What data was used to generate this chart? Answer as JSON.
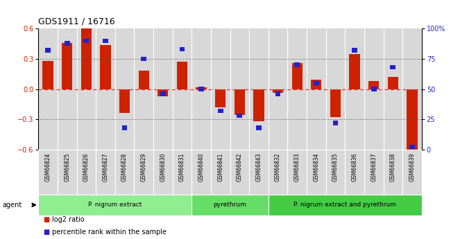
{
  "title": "GDS1911 / 16716",
  "samples": [
    "GSM66824",
    "GSM66825",
    "GSM66826",
    "GSM66827",
    "GSM66828",
    "GSM66829",
    "GSM66830",
    "GSM66831",
    "GSM66840",
    "GSM66841",
    "GSM66842",
    "GSM66843",
    "GSM66832",
    "GSM66833",
    "GSM66834",
    "GSM66835",
    "GSM66836",
    "GSM66837",
    "GSM66838",
    "GSM66839"
  ],
  "log2_ratio": [
    0.28,
    0.46,
    0.6,
    0.44,
    -0.24,
    0.18,
    -0.07,
    0.27,
    0.02,
    -0.18,
    -0.26,
    -0.32,
    -0.04,
    0.26,
    0.09,
    -0.28,
    0.35,
    0.08,
    0.12,
    -0.6
  ],
  "percentile": [
    82,
    88,
    90,
    90,
    18,
    75,
    46,
    83,
    50,
    32,
    28,
    18,
    46,
    70,
    55,
    22,
    82,
    50,
    68,
    2
  ],
  "groups": [
    {
      "label": "P. nigrum extract",
      "start": 0,
      "end": 7,
      "color": "#90ee90"
    },
    {
      "label": "pyrethrum",
      "start": 8,
      "end": 11,
      "color": "#66dd66"
    },
    {
      "label": "P. nigrum extract and pyrethrum",
      "start": 12,
      "end": 19,
      "color": "#44cc44"
    }
  ],
  "ylim": [
    -0.6,
    0.6
  ],
  "yticks_left": [
    -0.6,
    -0.3,
    0.0,
    0.3,
    0.6
  ],
  "yticks_right": [
    0,
    25,
    50,
    75,
    100
  ],
  "bar_color_red": "#cc2200",
  "bar_color_blue": "#2222cc",
  "hline_zero_color": "#dd3333",
  "hline_dotted_color": "#555555",
  "col_bg_color": "#d8d8d8",
  "agent_label": "agent",
  "legend_red": "log2 ratio",
  "legend_blue": "percentile rank within the sample"
}
